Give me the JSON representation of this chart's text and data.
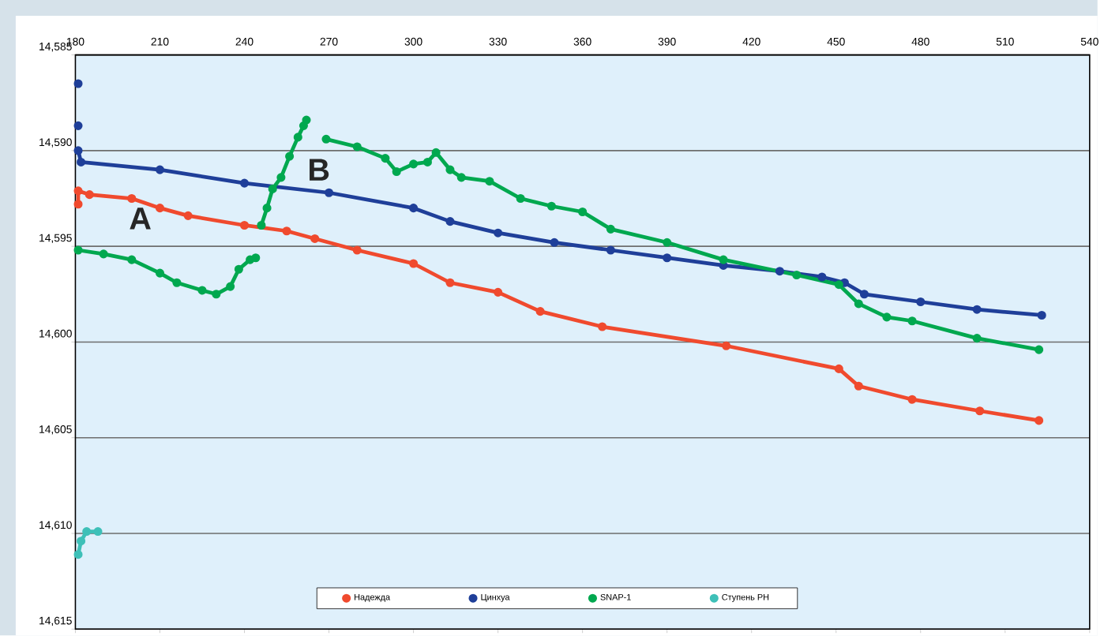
{
  "chart_data": {
    "type": "line",
    "marker": "circle",
    "grid": "y",
    "legend": "bottom",
    "xlim": [
      180,
      540
    ],
    "xticks": [
      180,
      210,
      240,
      270,
      300,
      330,
      360,
      390,
      420,
      450,
      480,
      510,
      540
    ],
    "ylim": [
      14615,
      14585
    ],
    "yticks": [
      {
        "value": 14585,
        "label": "14,585"
      },
      {
        "value": 14590,
        "label": "14,590"
      },
      {
        "value": 14595,
        "label": "14,595"
      },
      {
        "value": 14600,
        "label": "14,600"
      },
      {
        "value": 14605,
        "label": "14,605"
      },
      {
        "value": 14610,
        "label": "14,610"
      },
      {
        "value": 14615,
        "label": "14,615"
      }
    ],
    "series": [
      {
        "name": "Надежда",
        "color": "#f04a2e",
        "x": [
          181,
          181,
          185,
          200,
          210,
          220,
          240,
          255,
          265,
          280,
          300,
          313,
          330,
          345,
          367,
          411,
          451,
          458,
          477,
          501,
          522
        ],
        "values": [
          14592.8,
          14592.1,
          14592.3,
          14592.5,
          14593.0,
          14593.4,
          14593.9,
          14594.2,
          14594.6,
          14595.2,
          14595.9,
          14596.9,
          14597.4,
          14598.4,
          14599.2,
          14600.2,
          14601.4,
          14602.3,
          14603.0,
          14603.6,
          14604.1
        ]
      },
      {
        "name": "Цинхуа",
        "color": "#1f3f99",
        "x": [
          181,
          null,
          181,
          null,
          181,
          182,
          210,
          240,
          270,
          300,
          313,
          330,
          350,
          370,
          390,
          410,
          430,
          445,
          453,
          460,
          480,
          500,
          523
        ],
        "values": [
          14586.5,
          null,
          14588.7,
          null,
          14590.0,
          14590.6,
          14591.0,
          14591.7,
          14592.2,
          14593.0,
          14593.7,
          14594.3,
          14594.8,
          14595.2,
          14595.6,
          14596.0,
          14596.3,
          14596.6,
          14596.9,
          14597.5,
          14597.9,
          14598.3,
          14598.6
        ]
      },
      {
        "name": "SNAP-1",
        "color": "#00a84f",
        "x": [
          181,
          190,
          200,
          210,
          216,
          225,
          230,
          235,
          238,
          242,
          244,
          245,
          246,
          248,
          250,
          253,
          256,
          259,
          261,
          262,
          265,
          269,
          280,
          290,
          294,
          300,
          305,
          308,
          313,
          317,
          327,
          338,
          349,
          360,
          370,
          390,
          410,
          436,
          451,
          458,
          468,
          477,
          500,
          522
        ],
        "values": [
          14595.2,
          14595.4,
          14595.7,
          14596.4,
          14596.9,
          14597.3,
          14597.5,
          14597.1,
          14596.2,
          14595.7,
          14595.6,
          null,
          14593.9,
          14593.0,
          14592.0,
          14591.4,
          14590.3,
          14589.3,
          14588.7,
          14588.4,
          null,
          14589.4,
          14589.8,
          14590.4,
          14591.1,
          14590.7,
          14590.6,
          14590.1,
          14591.0,
          14591.4,
          14591.6,
          14592.5,
          14592.9,
          14593.2,
          14594.1,
          14594.8,
          14595.7,
          14596.5,
          14597.0,
          14598.0,
          14598.7,
          14598.9,
          14599.8,
          14600.4
        ]
      },
      {
        "name": "Ступень РН",
        "color": "#3ec0b8",
        "x": [
          181,
          182,
          184,
          188
        ],
        "values": [
          14611.1,
          14610.4,
          14609.9,
          14609.9
        ]
      }
    ],
    "annotations": [
      "A",
      "B"
    ]
  }
}
